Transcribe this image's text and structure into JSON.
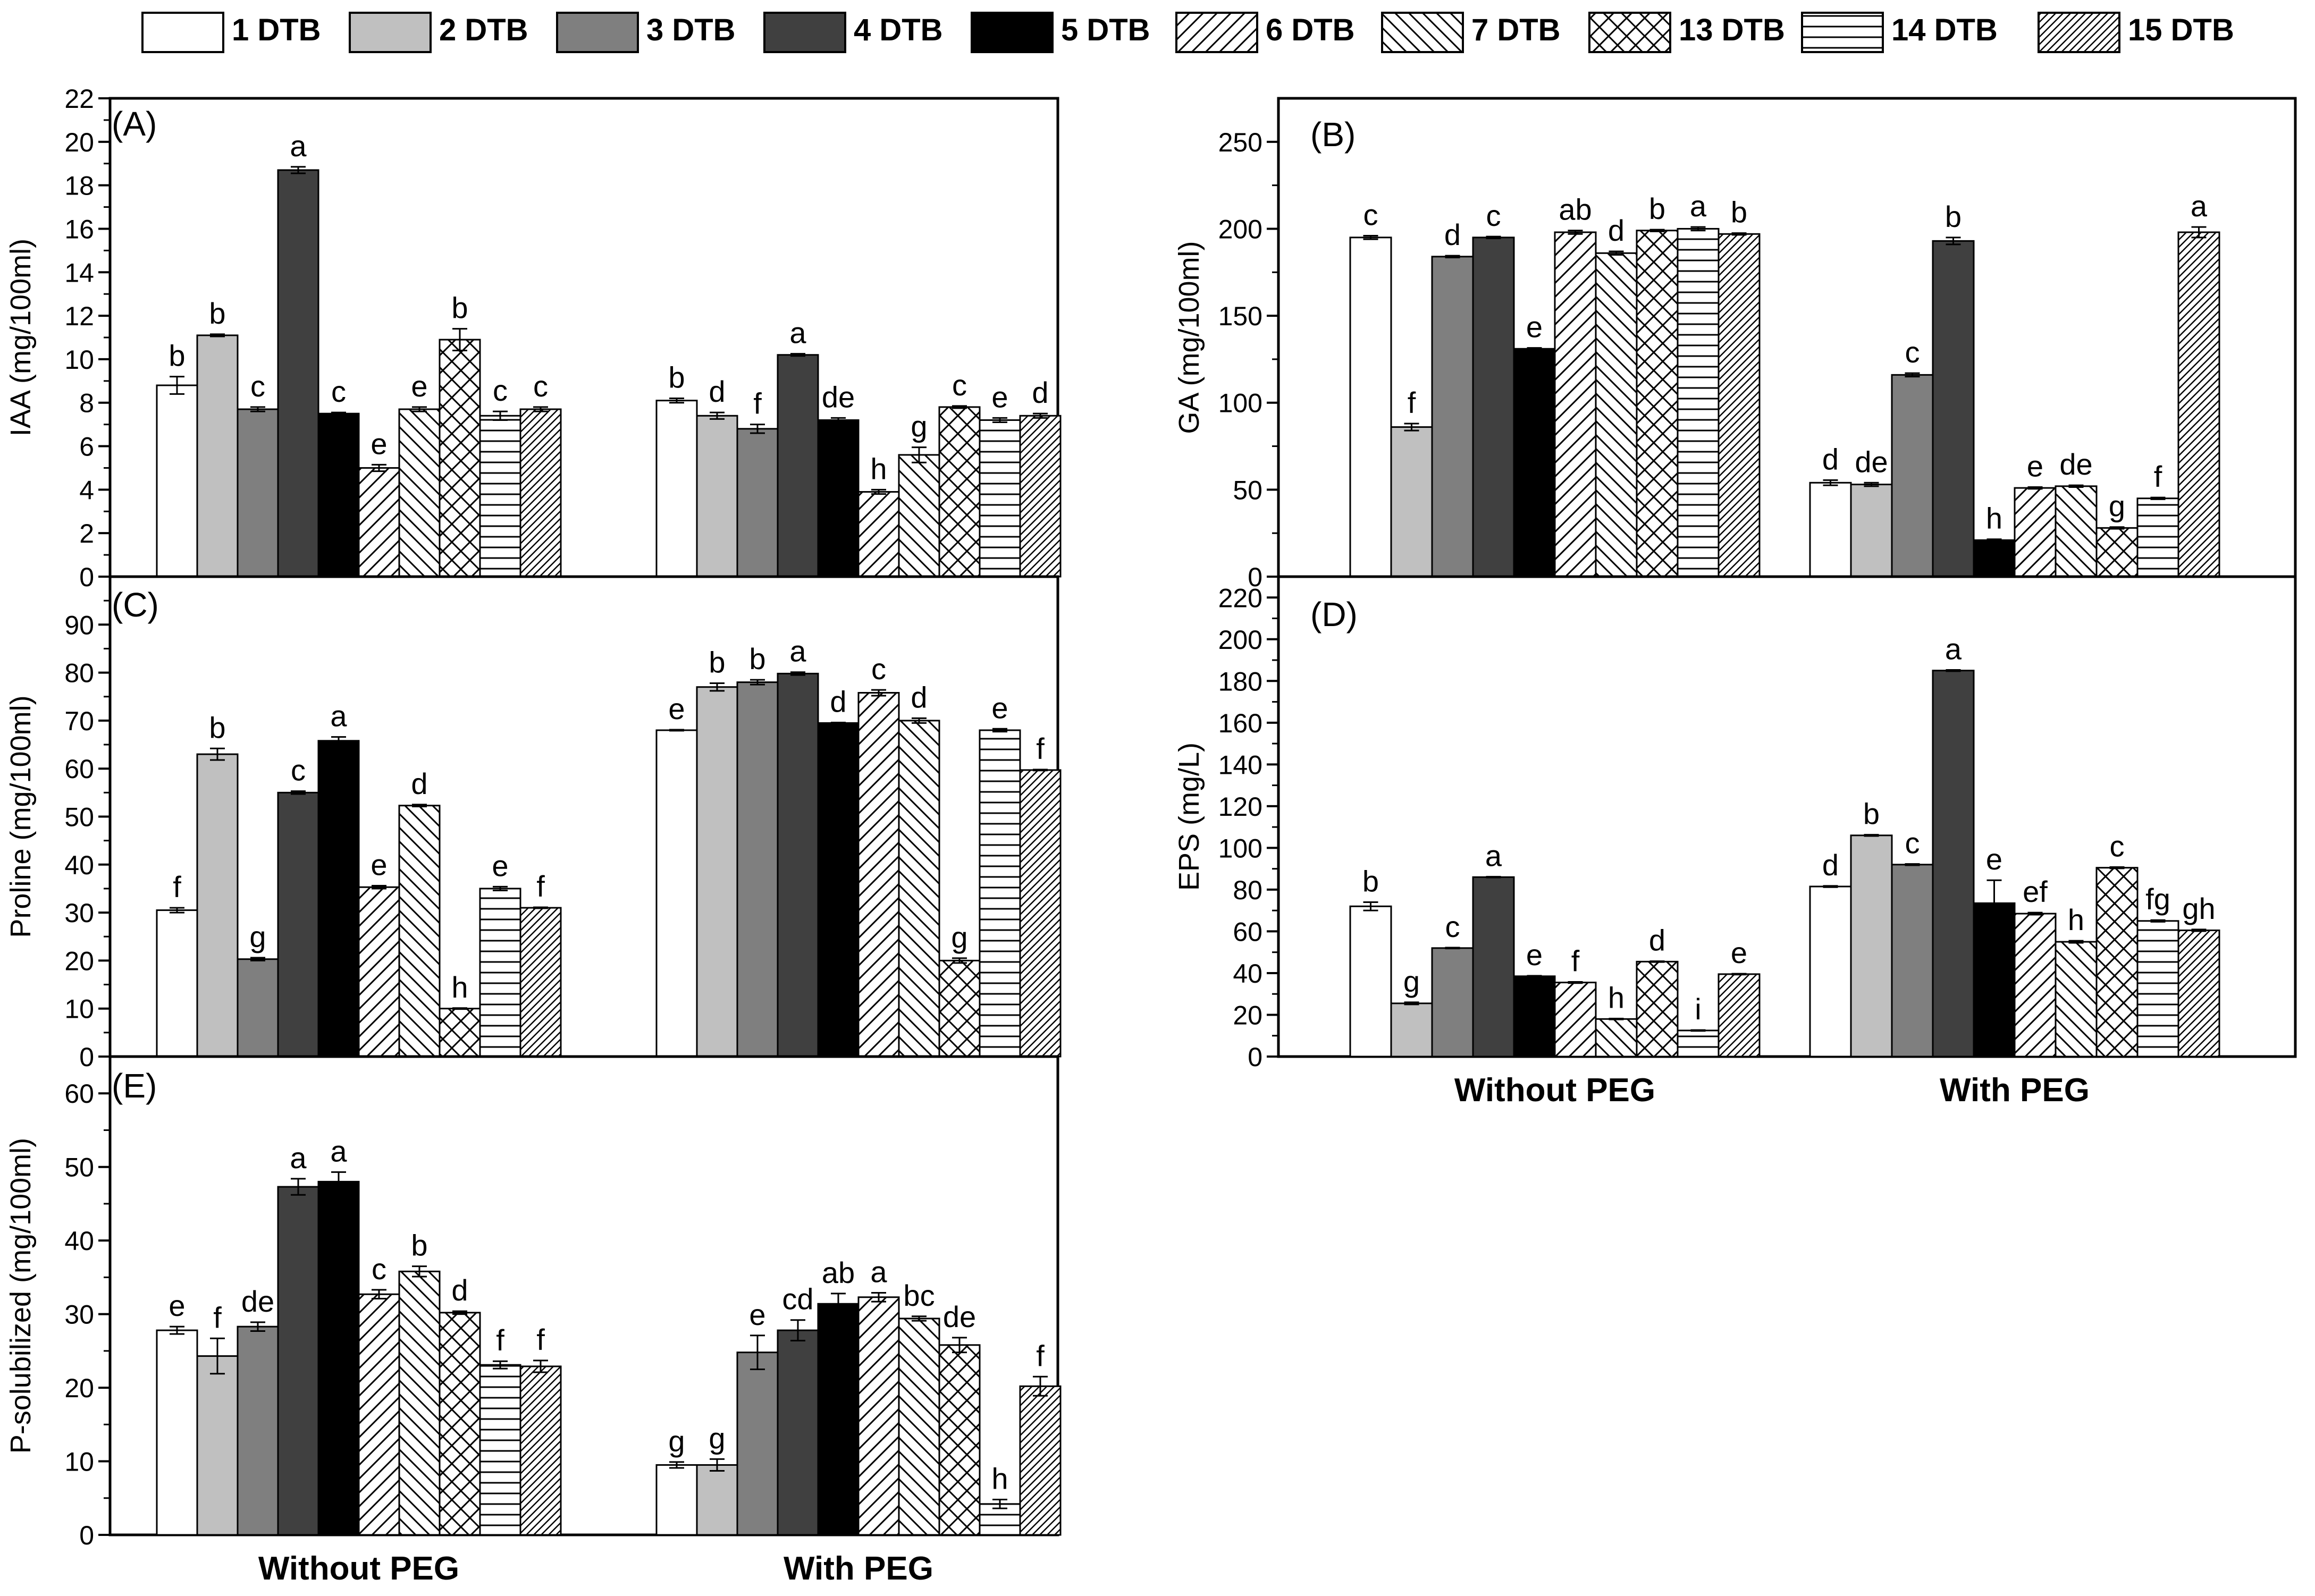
{
  "colors": {
    "axis": "#000000",
    "s1": "#ffffff",
    "s2": "#c0c0c0",
    "s3": "#7f7f7f",
    "s4": "#404040",
    "s5": "#000000"
  },
  "legend": {
    "items": [
      {
        "label": "1 DTB",
        "pattern": "white"
      },
      {
        "label": "2 DTB",
        "pattern": "lightgray"
      },
      {
        "label": "3 DTB",
        "pattern": "gray"
      },
      {
        "label": "4 DTB",
        "pattern": "darkgray"
      },
      {
        "label": "5 DTB",
        "pattern": "black"
      },
      {
        "label": "6 DTB",
        "pattern": "forward-diagonal"
      },
      {
        "label": "7 DTB",
        "pattern": "back-diagonal"
      },
      {
        "label": "13 DTB",
        "pattern": "crosshatch"
      },
      {
        "label": "14 DTB",
        "pattern": "horizontal"
      },
      {
        "label": "15 DTB",
        "pattern": "dense-diagonal"
      }
    ]
  },
  "chart_data": [
    {
      "id": "A",
      "type": "bar",
      "panel_label": "(A)",
      "ylabel": "IAA (mg/100ml)",
      "ylim": [
        0,
        22
      ],
      "yticks": [
        0,
        2,
        4,
        6,
        8,
        10,
        12,
        14,
        16,
        18,
        20,
        22
      ],
      "categories": [
        "Without PEG",
        "With PEG"
      ],
      "show_group_labels": false,
      "series": [
        "1 DTB",
        "2 DTB",
        "3 DTB",
        "4 DTB",
        "5 DTB",
        "6 DTB",
        "7 DTB",
        "13 DTB",
        "14 DTB",
        "15 DTB"
      ],
      "values": [
        [
          8.8,
          11.1,
          7.7,
          18.7,
          7.5,
          5.0,
          7.7,
          10.9,
          7.4,
          7.7
        ],
        [
          8.1,
          7.4,
          6.8,
          10.2,
          7.2,
          3.9,
          5.6,
          7.8,
          7.2,
          7.4
        ]
      ],
      "errors": [
        [
          0.4,
          0.05,
          0.1,
          0.15,
          0.05,
          0.15,
          0.1,
          0.5,
          0.2,
          0.1
        ],
        [
          0.1,
          0.15,
          0.2,
          0.05,
          0.1,
          0.1,
          0.35,
          0.05,
          0.1,
          0.1
        ]
      ],
      "letters": [
        [
          "b",
          "b",
          "c",
          "a",
          "c",
          "e",
          "e",
          "b",
          "c",
          "c"
        ],
        [
          "b",
          "d",
          "f",
          "a",
          "de",
          "h",
          "g",
          "c",
          "e",
          "d"
        ]
      ]
    },
    {
      "id": "B",
      "type": "bar",
      "panel_label": "(B)",
      "ylabel": "GA (mg/100ml)",
      "ylim": [
        0,
        275
      ],
      "yticks": [
        0,
        50,
        100,
        150,
        200,
        250
      ],
      "categories": [
        "Without PEG",
        "With PEG"
      ],
      "show_group_labels": false,
      "series": [
        "1 DTB",
        "2 DTB",
        "3 DTB",
        "4 DTB",
        "5 DTB",
        "6 DTB",
        "7 DTB",
        "13 DTB",
        "14 DTB",
        "15 DTB"
      ],
      "values": [
        [
          195,
          86,
          184,
          195,
          131,
          198,
          186,
          199,
          200,
          197
        ],
        [
          54,
          53,
          116,
          193,
          21,
          51,
          52,
          28,
          45,
          198
        ]
      ],
      "errors": [
        [
          1,
          2,
          0.5,
          0.5,
          0.5,
          1,
          1,
          0.5,
          1,
          0.5
        ],
        [
          1.5,
          1,
          1,
          2,
          0.5,
          0.5,
          0.5,
          0.5,
          0.5,
          3
        ]
      ],
      "letters": [
        [
          "c",
          "f",
          "d",
          "c",
          "e",
          "ab",
          "d",
          "b",
          "a",
          "b"
        ],
        [
          "d",
          "de",
          "c",
          "b",
          "h",
          "e",
          "de",
          "g",
          "f",
          "a"
        ]
      ]
    },
    {
      "id": "C",
      "type": "bar",
      "panel_label": "(C)",
      "ylabel": "Proline (mg/100ml)",
      "ylim": [
        0,
        100
      ],
      "yticks": [
        0,
        10,
        20,
        30,
        40,
        50,
        60,
        70,
        80,
        90
      ],
      "categories": [
        "Without PEG",
        "With PEG"
      ],
      "show_group_labels": false,
      "series": [
        "1 DTB",
        "2 DTB",
        "3 DTB",
        "4 DTB",
        "5 DTB",
        "6 DTB",
        "7 DTB",
        "13 DTB",
        "14 DTB",
        "15 DTB"
      ],
      "values": [
        [
          30.5,
          63,
          20.3,
          55,
          65.8,
          35.3,
          52.3,
          10,
          35,
          31
        ],
        [
          68,
          77,
          78,
          79.8,
          69.5,
          75.8,
          70,
          20,
          68,
          59.7
        ]
      ],
      "errors": [
        [
          0.5,
          1.2,
          0.3,
          0.3,
          0.8,
          0.3,
          0.2,
          0.1,
          0.4,
          0.1
        ],
        [
          0.1,
          0.8,
          0.5,
          0.3,
          0.1,
          0.6,
          0.5,
          0.5,
          0.3,
          0.1
        ]
      ],
      "letters": [
        [
          "f",
          "b",
          "g",
          "c",
          "a",
          "e",
          "d",
          "h",
          "e",
          "f"
        ],
        [
          "e",
          "b",
          "b",
          "a",
          "d",
          "c",
          "d",
          "g",
          "e",
          "f"
        ]
      ]
    },
    {
      "id": "D",
      "type": "bar",
      "panel_label": "(D)",
      "ylabel": "EPS (mg/L)",
      "ylim": [
        0,
        230
      ],
      "yticks": [
        0,
        20,
        40,
        60,
        80,
        100,
        120,
        140,
        160,
        180,
        200,
        220
      ],
      "categories": [
        "Without PEG",
        "With PEG"
      ],
      "show_group_labels": true,
      "series": [
        "1 DTB",
        "2 DTB",
        "3 DTB",
        "4 DTB",
        "5 DTB",
        "6 DTB",
        "7 DTB",
        "13 DTB",
        "14 DTB",
        "15 DTB"
      ],
      "values": [
        [
          72,
          25.5,
          52,
          86,
          38.5,
          35.5,
          18,
          45.5,
          12.5,
          39.5
        ],
        [
          81.5,
          106,
          92,
          185,
          73.5,
          68.5,
          55,
          90.5,
          65,
          60.5
        ]
      ],
      "errors": [
        [
          2,
          0.5,
          0.2,
          0.2,
          0.2,
          0.3,
          0.2,
          0.2,
          0.2,
          0.2
        ],
        [
          0.3,
          0.3,
          0.3,
          0.3,
          11,
          0.5,
          0.5,
          0.3,
          0.4,
          0.4
        ]
      ],
      "letters": [
        [
          "b",
          "g",
          "c",
          "a",
          "e",
          "f",
          "h",
          "d",
          "i",
          "e"
        ],
        [
          "d",
          "b",
          "c",
          "a",
          "e",
          "ef",
          "h",
          "c",
          "fg",
          "gh"
        ]
      ]
    },
    {
      "id": "E",
      "type": "bar",
      "panel_label": "(E)",
      "ylabel": "P-solubilized (mg/100ml)",
      "ylim": [
        0,
        65
      ],
      "yticks": [
        0,
        10,
        20,
        30,
        40,
        50,
        60
      ],
      "categories": [
        "Without PEG",
        "With PEG"
      ],
      "show_group_labels": true,
      "series": [
        "1 DTB",
        "2 DTB",
        "3 DTB",
        "4 DTB",
        "5 DTB",
        "6 DTB",
        "7 DTB",
        "13 DTB",
        "14 DTB",
        "15 DTB"
      ],
      "values": [
        [
          27.8,
          24.3,
          28.3,
          47.3,
          48,
          32.7,
          35.8,
          30.2,
          23.1,
          22.9
        ],
        [
          9.5,
          9.5,
          24.8,
          27.8,
          31.4,
          32.3,
          29.4,
          25.8,
          4.2,
          20.2
        ]
      ],
      "errors": [
        [
          0.5,
          2.4,
          0.6,
          1.1,
          1.3,
          0.6,
          0.7,
          0.2,
          0.5,
          0.8
        ],
        [
          0.4,
          0.8,
          2.3,
          1.4,
          1.4,
          0.6,
          0.3,
          1.0,
          0.6,
          1.3
        ]
      ],
      "letters": [
        [
          "e",
          "f",
          "de",
          "a",
          "a",
          "c",
          "b",
          "d",
          "f",
          "f"
        ],
        [
          "g",
          "g",
          "e",
          "cd",
          "ab",
          "a",
          "bc",
          "de",
          "h",
          "f"
        ]
      ]
    }
  ]
}
